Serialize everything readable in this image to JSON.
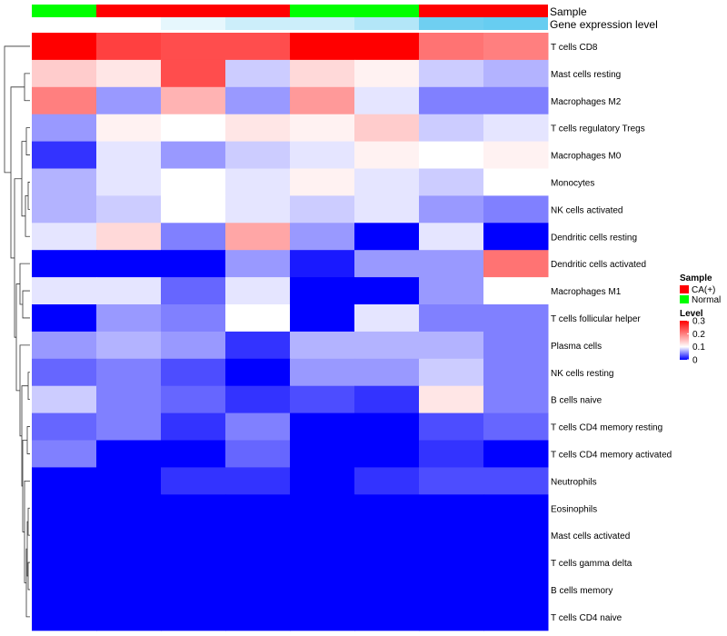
{
  "chart_data": {
    "type": "heatmap",
    "title": "",
    "columns": 8,
    "annotations": {
      "sample": {
        "name": "Sample",
        "values": [
          "Normal",
          "CA(+)",
          "CA(+)",
          "CA(+)",
          "Normal",
          "Normal",
          "CA(+)",
          "CA(+)"
        ],
        "colors": {
          "CA(+)": "#ff0000",
          "Normal": "#00ff00"
        }
      },
      "expression": {
        "name": "Gene expression level",
        "values": [
          0.0,
          0.0,
          0.15,
          0.3,
          0.3,
          0.45,
          0.85,
          0.9
        ]
      }
    },
    "rows": [
      "T cells CD8",
      "Mast cells resting",
      "Macrophages M2",
      "T cells regulatory  Tregs",
      "Macrophages M0",
      "Monocytes",
      "NK cells activated",
      "Dendritic cells resting",
      "Dendritic cells activated",
      "Macrophages M1",
      "T cells follicular helper",
      "Plasma cells",
      "NK cells resting",
      "B cells naive",
      "T cells CD4 memory resting",
      "T cells CD4 memory activated",
      "Neutrophils",
      "Eosinophils",
      "Mast cells activated",
      "T cells gamma delta",
      "B cells memory",
      "T cells CD4 naive"
    ],
    "values": [
      [
        0.3,
        0.25,
        0.24,
        0.24,
        0.3,
        0.3,
        0.21,
        0.2
      ],
      [
        0.14,
        0.12,
        0.24,
        0.08,
        0.13,
        0.11,
        0.08,
        0.07
      ],
      [
        0.2,
        0.06,
        0.16,
        0.06,
        0.18,
        0.09,
        0.05,
        0.05
      ],
      [
        0.06,
        0.11,
        0.1,
        0.12,
        0.11,
        0.14,
        0.08,
        0.09
      ],
      [
        0.02,
        0.09,
        0.06,
        0.08,
        0.09,
        0.11,
        0.1,
        0.11
      ],
      [
        0.07,
        0.09,
        0.1,
        0.09,
        0.11,
        0.09,
        0.08,
        0.1
      ],
      [
        0.07,
        0.08,
        0.1,
        0.09,
        0.08,
        0.09,
        0.06,
        0.05
      ],
      [
        0.09,
        0.13,
        0.05,
        0.17,
        0.06,
        0.0,
        0.09,
        0.0
      ],
      [
        0.0,
        0.0,
        0.0,
        0.06,
        0.01,
        0.06,
        0.06,
        0.21
      ],
      [
        0.09,
        0.09,
        0.04,
        0.09,
        0.0,
        0.0,
        0.06,
        0.1
      ],
      [
        0.0,
        0.06,
        0.05,
        0.1,
        0.0,
        0.09,
        0.05,
        0.05
      ],
      [
        0.06,
        0.07,
        0.06,
        0.02,
        0.07,
        0.07,
        0.07,
        0.05
      ],
      [
        0.04,
        0.05,
        0.03,
        0.0,
        0.06,
        0.06,
        0.08,
        0.05
      ],
      [
        0.08,
        0.05,
        0.04,
        0.02,
        0.03,
        0.02,
        0.12,
        0.05
      ],
      [
        0.04,
        0.05,
        0.02,
        0.05,
        0.0,
        0.0,
        0.03,
        0.04
      ],
      [
        0.05,
        0.0,
        0.0,
        0.04,
        0.0,
        0.0,
        0.02,
        0.0
      ],
      [
        0.0,
        0.0,
        0.02,
        0.02,
        0.0,
        0.02,
        0.03,
        0.03
      ],
      [
        0.0,
        0.0,
        0.0,
        0.0,
        0.0,
        0.0,
        0.0,
        0.0
      ],
      [
        0.0,
        0.0,
        0.0,
        0.0,
        0.0,
        0.0,
        0.0,
        0.0
      ],
      [
        0.0,
        0.0,
        0.0,
        0.0,
        0.0,
        0.0,
        0.0,
        0.0
      ],
      [
        0.0,
        0.0,
        0.0,
        0.0,
        0.0,
        0.0,
        0.0,
        0.0
      ],
      [
        0.0,
        0.0,
        0.0,
        0.0,
        0.0,
        0.0,
        0.0,
        0.0
      ]
    ],
    "color_scale": {
      "stops": [
        0,
        0.1,
        0.3
      ],
      "colors": [
        "#0000ff",
        "#ffffff",
        "#ff0000"
      ],
      "range": [
        0,
        0.3
      ]
    },
    "legend": {
      "position": "right",
      "sample_title": "Sample",
      "sample_items": [
        "CA(+)",
        "Normal"
      ],
      "level_title": "Level",
      "level_ticks": [
        "0.3",
        "0.2",
        "0.1",
        "0"
      ],
      "level_tick_values": [
        0.3,
        0.2,
        0.1,
        0.0
      ]
    },
    "row_dendrogram": true
  }
}
